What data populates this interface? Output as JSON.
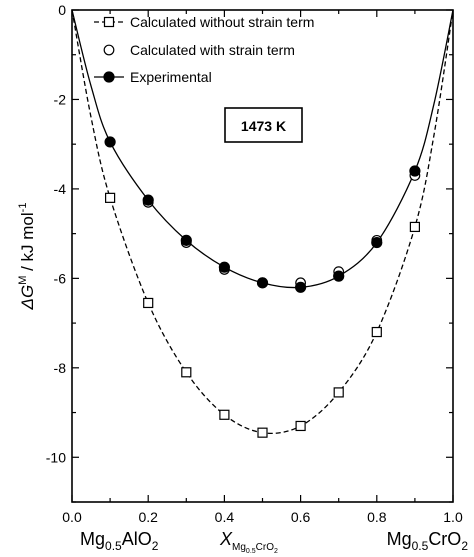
{
  "chart_data": {
    "type": "scatter",
    "x_range": [
      0.0,
      1.0
    ],
    "y_range": [
      -11,
      0
    ],
    "x_ticks": [
      {
        "v": 0.0,
        "label": "0.0"
      },
      {
        "v": 0.2,
        "label": "0.2"
      },
      {
        "v": 0.4,
        "label": "0.4"
      },
      {
        "v": 0.6,
        "label": "0.6"
      },
      {
        "v": 0.8,
        "label": "0.8"
      },
      {
        "v": 1.0,
        "label": "1.0"
      }
    ],
    "y_ticks": [
      {
        "v": 0,
        "label": "0"
      },
      {
        "v": -2,
        "label": "-2"
      },
      {
        "v": -4,
        "label": "-4"
      },
      {
        "v": -6,
        "label": "-6"
      },
      {
        "v": -8,
        "label": "-8"
      },
      {
        "v": -10,
        "label": "-10"
      }
    ],
    "y_label": {
      "prefix": "ΔG",
      "sup": "M",
      "unit": " / kJ mol",
      "unit_sup": "-1"
    },
    "x_label": {
      "main": "X",
      "sub": "Mg",
      "sub_sub": "0.5",
      "sub2": "CrO",
      "sub2_sub": "2"
    },
    "x_end_labels": {
      "left": {
        "a": "Mg",
        "a_sub": "0.5",
        "b": "AlO",
        "b_sub": "2"
      },
      "right": {
        "a": "Mg",
        "a_sub": "0.5",
        "b": "CrO",
        "b_sub": "2"
      }
    },
    "annotation": "1473 K",
    "legend": [
      {
        "label": "Calculated without strain term",
        "marker": "open-square",
        "line": "dashed"
      },
      {
        "label": "Calculated with strain term",
        "marker": "open-circle",
        "line": "none"
      },
      {
        "label": "Experimental",
        "marker": "filled-circle",
        "line": "solid"
      }
    ],
    "series": [
      {
        "name": "Calculated without strain term",
        "x": [
          0.1,
          0.2,
          0.3,
          0.4,
          0.5,
          0.6,
          0.7,
          0.8,
          0.9
        ],
        "y": [
          -4.2,
          -6.55,
          -8.1,
          -9.05,
          -9.45,
          -9.3,
          -8.55,
          -7.2,
          -4.85
        ]
      },
      {
        "name": "Calculated with strain term",
        "x": [
          0.2,
          0.3,
          0.4,
          0.5,
          0.6,
          0.7,
          0.8,
          0.9
        ],
        "y": [
          -4.3,
          -5.2,
          -5.8,
          -6.1,
          -6.1,
          -5.85,
          -5.15,
          -3.7
        ]
      },
      {
        "name": "Experimental",
        "x": [
          0.1,
          0.2,
          0.3,
          0.4,
          0.5,
          0.6,
          0.7,
          0.8,
          0.9
        ],
        "y": [
          -2.95,
          -4.25,
          -5.15,
          -5.75,
          -6.1,
          -6.2,
          -5.95,
          -5.2,
          -3.6
        ]
      }
    ],
    "fit_curves": [
      {
        "name": "Calculated without strain term",
        "style": "dashed",
        "x": [
          0,
          0.05,
          0.1,
          0.2,
          0.3,
          0.4,
          0.5,
          0.6,
          0.7,
          0.8,
          0.9,
          0.95,
          1.0
        ],
        "y": [
          0,
          -2.4,
          -4.2,
          -6.55,
          -8.1,
          -9.05,
          -9.45,
          -9.3,
          -8.55,
          -7.2,
          -4.85,
          -2.8,
          0
        ]
      },
      {
        "name": "Experimental",
        "style": "solid",
        "x": [
          0,
          0.05,
          0.1,
          0.2,
          0.3,
          0.4,
          0.5,
          0.6,
          0.7,
          0.8,
          0.9,
          0.95,
          1.0
        ],
        "y": [
          0,
          -1.7,
          -2.95,
          -4.25,
          -5.15,
          -5.75,
          -6.1,
          -6.2,
          -5.95,
          -5.2,
          -3.6,
          -2.1,
          0
        ]
      }
    ]
  }
}
